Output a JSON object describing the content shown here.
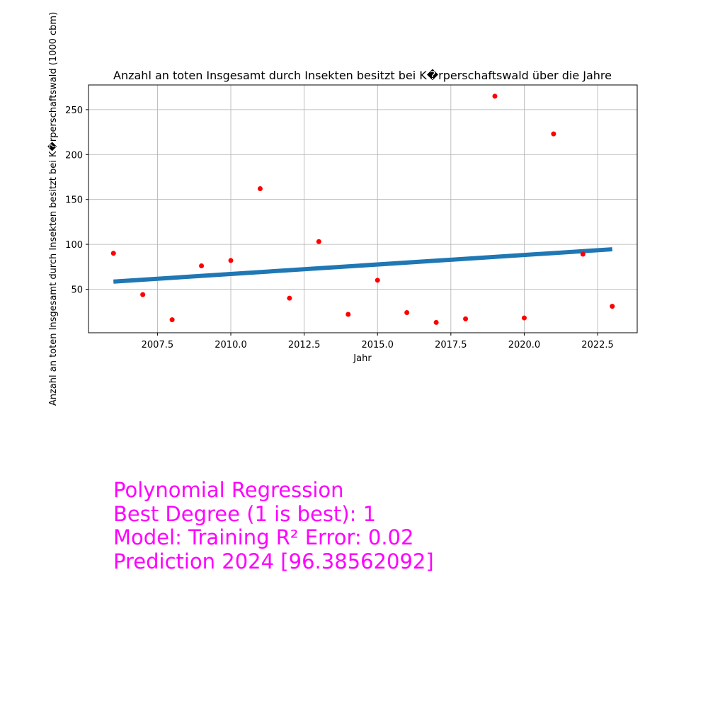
{
  "chart_data": {
    "type": "scatter",
    "title": "Anzahl an toten Insgesamt durch Insekten besitzt bei K�rperschaftswald über die Jahre",
    "xlabel": "Jahr",
    "ylabel": "Anzahl an toten Insgesamt durch Insekten besitzt bei K�rperschaftswald (1000 cbm)",
    "xlim": [
      2005.15,
      2023.85
    ],
    "ylim": [
      1.5,
      277.5
    ],
    "xticks": [
      2007.5,
      2010.0,
      2012.5,
      2015.0,
      2017.5,
      2020.0,
      2022.5
    ],
    "xtick_labels": [
      "2007.5",
      "2010.0",
      "2012.5",
      "2015.0",
      "2017.5",
      "2020.0",
      "2022.5"
    ],
    "yticks": [
      50,
      100,
      150,
      200,
      250
    ],
    "ytick_labels": [
      "50",
      "100",
      "150",
      "200",
      "250"
    ],
    "grid": true,
    "series": [
      {
        "kind": "points",
        "color": "#ff0000",
        "x": [
          2006,
          2007,
          2008,
          2009,
          2010,
          2011,
          2012,
          2013,
          2014,
          2015,
          2016,
          2017,
          2018,
          2019,
          2020,
          2021,
          2022,
          2023
        ],
        "y": [
          90,
          44,
          16,
          76,
          82,
          162,
          40,
          103,
          22,
          60,
          24,
          13,
          17,
          265,
          18,
          223,
          89,
          31
        ]
      },
      {
        "kind": "fit-line",
        "color": "#1f77b4",
        "x": [
          2006,
          2023
        ],
        "y": [
          58.5,
          94.5
        ]
      }
    ]
  },
  "annotation": {
    "line1": "Polynomial Regression",
    "line2": "Best Degree (1 is best): 1",
    "line3": "Model: Training R² Error: 0.02",
    "line4": "Prediction 2024 [96.38562092]",
    "color": "#ff00ff"
  }
}
